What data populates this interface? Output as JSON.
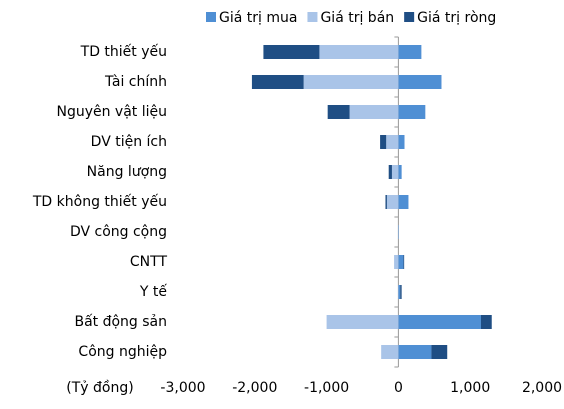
{
  "chart_data": {
    "type": "stacked-bar-horizontal",
    "x_label": "(Tỷ đồng)",
    "categories": [
      "TD thiết yếu",
      "Tài chính",
      "Nguyên vật liệu",
      "DV tiện ích",
      "Năng lượng",
      "TD không thiết yếu",
      "DV công cộng",
      "CNTT",
      "Y tế",
      "Bất động sản",
      "Công nghiệp"
    ],
    "series": [
      {
        "name": "Giá trị mua",
        "color": "#4f8fd4",
        "values": [
          320,
          600,
          375,
          85,
          45,
          140,
          5,
          70,
          25,
          1150,
          460
        ]
      },
      {
        "name": "Giá trị bán",
        "color": "#a9c4e8",
        "values": [
          -1100,
          -1320,
          -680,
          -170,
          -90,
          -160,
          -5,
          -60,
          -5,
          -1000,
          -240
        ]
      },
      {
        "name": "Giá trị ròng",
        "color": "#1f4e84",
        "values": [
          -780,
          -720,
          -305,
          -85,
          -45,
          -20,
          0,
          10,
          20,
          150,
          220
        ]
      }
    ],
    "xlim": [
      -3000,
      2000
    ],
    "xticks": [
      {
        "value": -3000,
        "label": "-3,000"
      },
      {
        "value": -2000,
        "label": "-2,000"
      },
      {
        "value": -1000,
        "label": "-1,000"
      },
      0,
      {
        "value": 1000,
        "label": "1,000"
      },
      {
        "value": 2000,
        "label": "2,000"
      }
    ],
    "legend": "top"
  }
}
